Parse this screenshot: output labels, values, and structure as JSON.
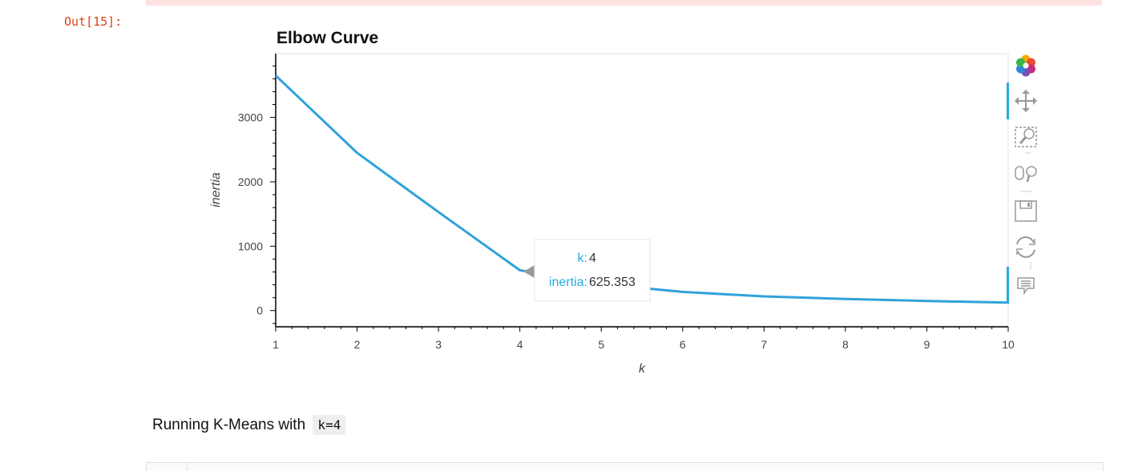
{
  "notebook": {
    "out_prompt": "Out[15]:",
    "markdown_text": "Running K-Means with",
    "markdown_code": "k=4"
  },
  "tooltip": {
    "k_label": "k:",
    "k_value": "4",
    "inertia_label": "inertia:",
    "inertia_value": "625.353"
  },
  "toolbar": {
    "tools": [
      "bokeh-logo-icon",
      "pan-icon",
      "box-zoom-icon",
      "wheel-zoom-icon",
      "save-icon",
      "reset-icon",
      "hover-icon"
    ],
    "accent": "#26aae1"
  },
  "chart_data": {
    "type": "line",
    "title": "Elbow Curve",
    "xlabel": "k",
    "ylabel": "inertia",
    "x": [
      1,
      2,
      3,
      4,
      5,
      6,
      7,
      8,
      9,
      10
    ],
    "series": [
      {
        "values": [
          3650,
          2450,
          1530,
          625.353,
          410,
          290,
          220,
          180,
          150,
          125
        ]
      }
    ],
    "xlim": [
      1,
      10
    ],
    "ylim": [
      -240,
      3990
    ],
    "xticks": [
      1,
      2,
      3,
      4,
      5,
      6,
      7,
      8,
      9,
      10
    ],
    "yticks": [
      0,
      1000,
      2000,
      3000
    ],
    "line_color": "#30a2da",
    "grid": false
  }
}
